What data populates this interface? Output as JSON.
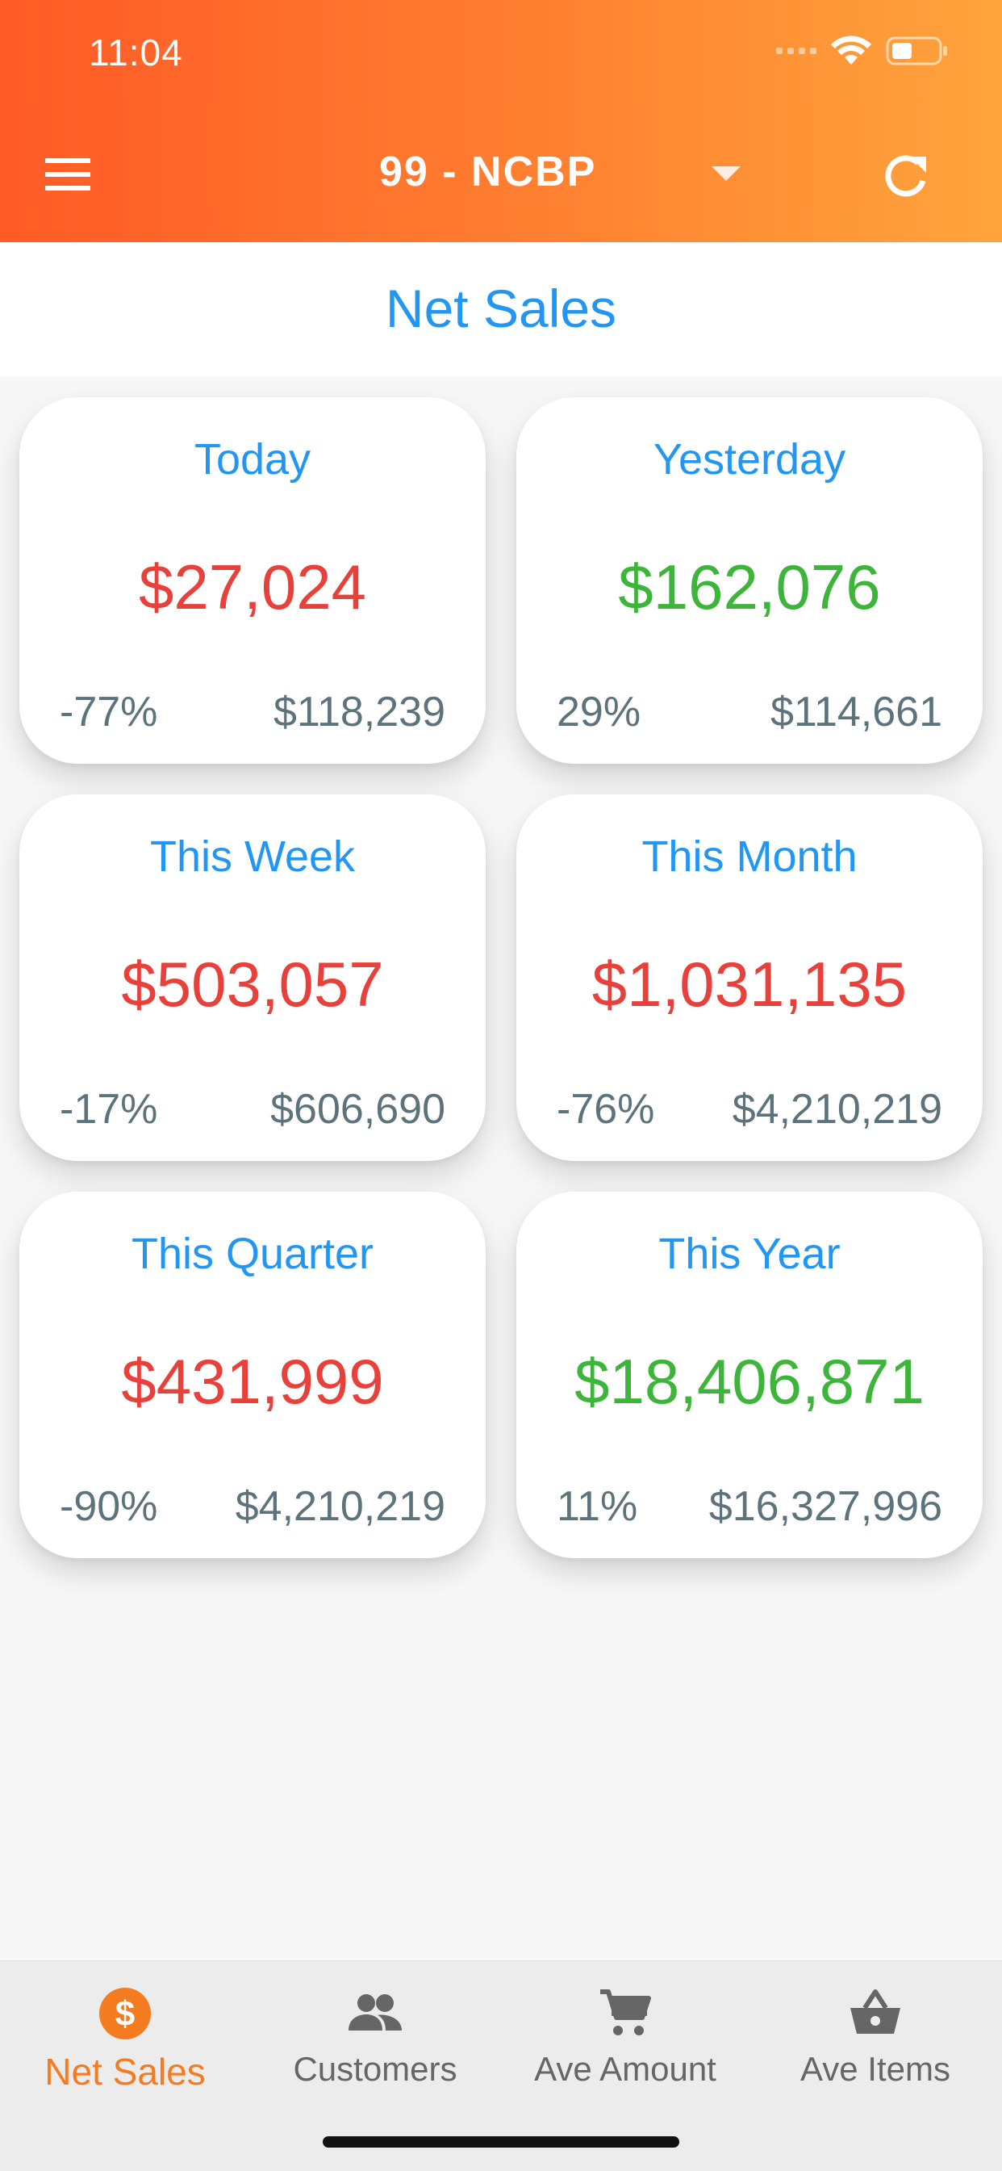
{
  "status_bar": {
    "time": "11:04"
  },
  "header": {
    "store": "99 - NCBP",
    "menu_icon": "hamburger-menu-icon",
    "refresh_icon": "refresh-icon",
    "dropdown_icon": "caret-down-icon"
  },
  "page": {
    "title": "Net Sales"
  },
  "colors": {
    "header_gradient_start": "#ff5a26",
    "header_gradient_end": "#ffa43c",
    "title_blue": "#2196f3",
    "negative_red": "#e8403a",
    "positive_green": "#3db53a",
    "muted_text": "#5d737c",
    "active_tab": "#f47b20"
  },
  "cards": [
    {
      "label": "Today",
      "value": "$27,024",
      "change": "-77%",
      "comparison": "$118,239",
      "trend": "down"
    },
    {
      "label": "Yesterday",
      "value": "$162,076",
      "change": "29%",
      "comparison": "$114,661",
      "trend": "up"
    },
    {
      "label": "This Week",
      "value": "$503,057",
      "change": "-17%",
      "comparison": "$606,690",
      "trend": "down"
    },
    {
      "label": "This Month",
      "value": "$1,031,135",
      "change": "-76%",
      "comparison": "$4,210,219",
      "trend": "down"
    },
    {
      "label": "This Quarter",
      "value": "$431,999",
      "change": "-90%",
      "comparison": "$4,210,219",
      "trend": "down"
    },
    {
      "label": "This Year",
      "value": "$18,406,871",
      "change": "11%",
      "comparison": "$16,327,996",
      "trend": "up"
    }
  ],
  "tabs": [
    {
      "label": "Net Sales",
      "icon": "dollar-circle-icon",
      "active": true
    },
    {
      "label": "Customers",
      "icon": "people-icon",
      "active": false
    },
    {
      "label": "Ave Amount",
      "icon": "cart-icon",
      "active": false
    },
    {
      "label": "Ave Items",
      "icon": "basket-icon",
      "active": false
    }
  ]
}
